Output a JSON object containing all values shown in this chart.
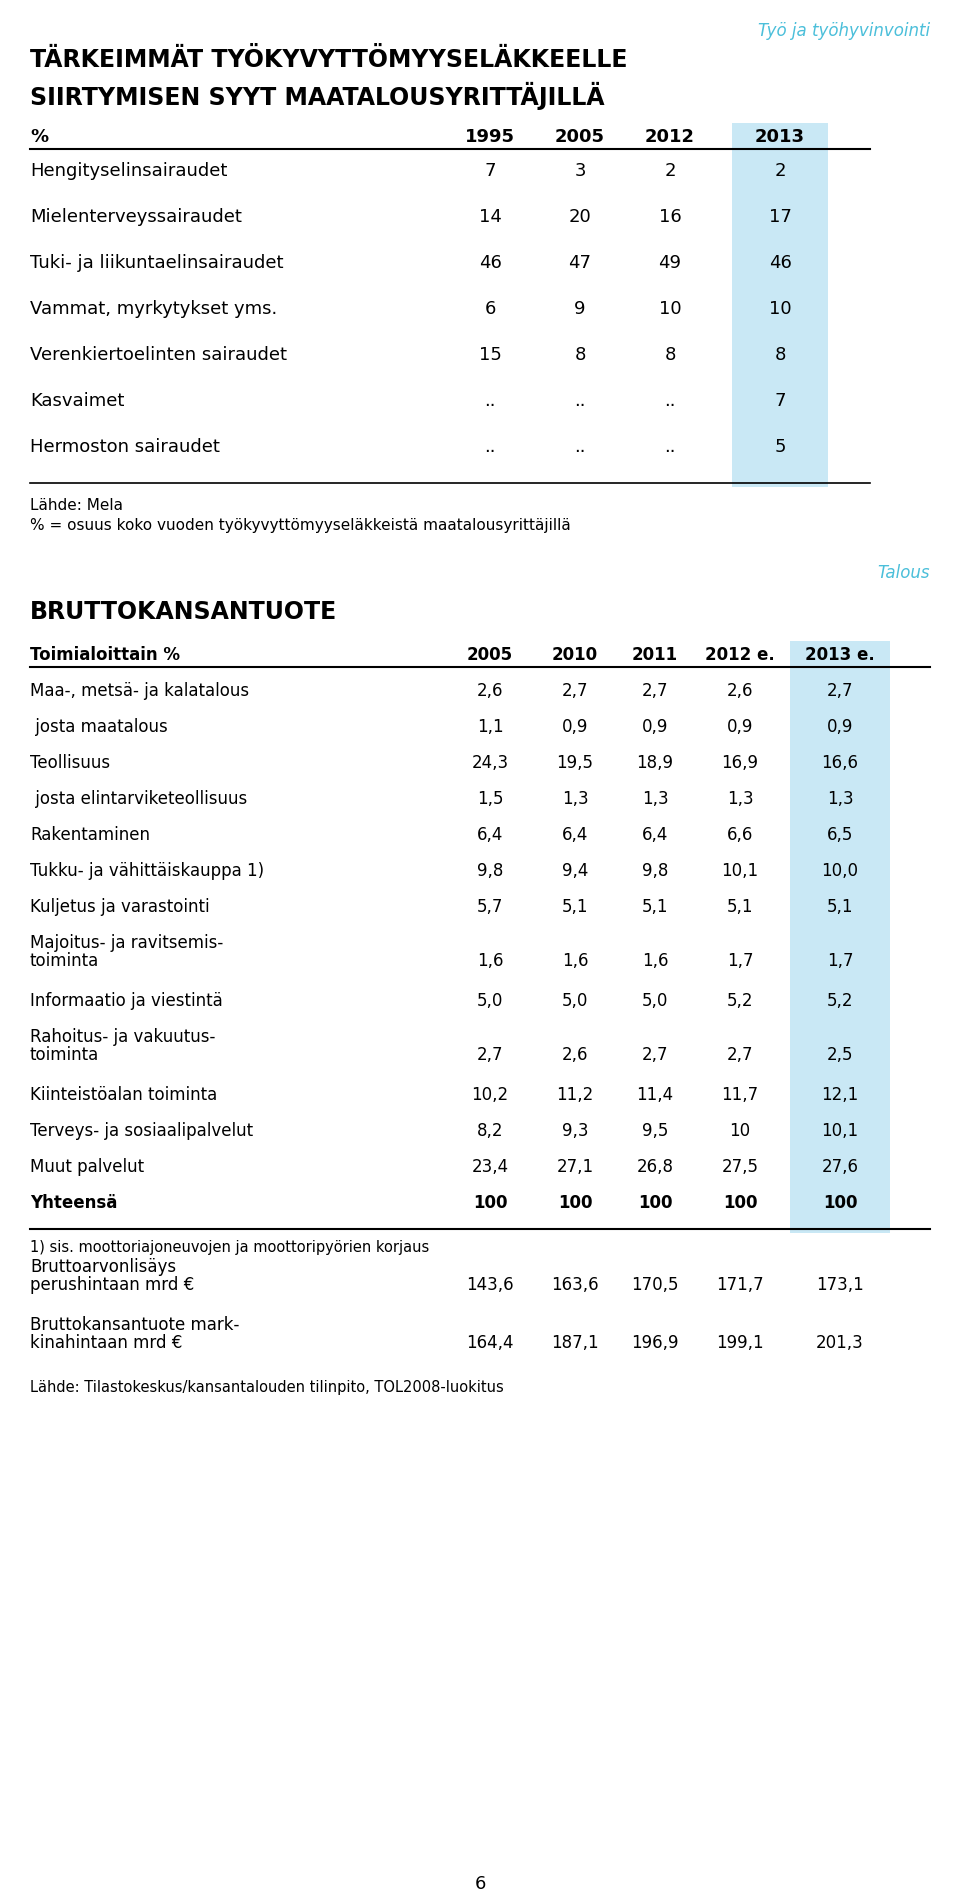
{
  "page_bg": "#ffffff",
  "header_tag": "Työ ja työhyvinvointi",
  "header_tag_color": "#4BBFDA",
  "title1": "TÄRKEIMMÄT TYÖKYVYTTÖMYYSELÄKKEELLE",
  "title2": "SIIRTYMISEN SYYT MAATALOUSYRITTÄJILLÄ",
  "title_color": "#000000",
  "title_fontsize": 17,
  "table1_header": [
    "%",
    "1995",
    "2005",
    "2012",
    "2013"
  ],
  "table1_highlight_color": "#C9E8F5",
  "table1_rows": [
    [
      "Hengityselinsairaudet",
      "7",
      "3",
      "2",
      "2"
    ],
    [
      "Mielenterveyssairaudet",
      "14",
      "20",
      "16",
      "17"
    ],
    [
      "Tuki- ja liikuntaelinsairaudet",
      "46",
      "47",
      "49",
      "46"
    ],
    [
      "Vammat, myrkytykset yms.",
      "6",
      "9",
      "10",
      "10"
    ],
    [
      "Verenkiertoelinten sairaudet",
      "15",
      "8",
      "8",
      "8"
    ],
    [
      "Kasvaimet",
      "..",
      "..",
      "..",
      "7"
    ],
    [
      "Hermoston sairaudet",
      "..",
      "..",
      "..",
      "5"
    ]
  ],
  "table1_source": "Lähde: Mela",
  "table1_note": "% = osuus koko vuoden työkyvyttömyyseläkkeistä maatalousyrittäjillä",
  "section2_tag": "Talous",
  "section2_tag_color": "#4BBFDA",
  "section2_title": "BRUTTOKANSANTUOTE",
  "section2_title_fontsize": 17,
  "table2_header": [
    "Toimialoittain %",
    "2005",
    "2010",
    "2011",
    "2012 e.",
    "2013 e."
  ],
  "table2_highlight_color": "#C9E8F5",
  "table2_rows": [
    [
      "Maa-, metsä- ja kalatalous",
      "2,6",
      "2,7",
      "2,7",
      "2,6",
      "2,7"
    ],
    [
      " josta maatalous",
      "1,1",
      "0,9",
      "0,9",
      "0,9",
      "0,9"
    ],
    [
      "Teollisuus",
      "24,3",
      "19,5",
      "18,9",
      "16,9",
      "16,6"
    ],
    [
      " josta elintarviketeollisuus",
      "1,5",
      "1,3",
      "1,3",
      "1,3",
      "1,3"
    ],
    [
      "Rakentaminen",
      "6,4",
      "6,4",
      "6,4",
      "6,6",
      "6,5"
    ],
    [
      "Tukku- ja vähittäiskauppa 1)",
      "9,8",
      "9,4",
      "9,8",
      "10,1",
      "10,0"
    ],
    [
      "Kuljetus ja varastointi",
      "5,7",
      "5,1",
      "5,1",
      "5,1",
      "5,1"
    ],
    [
      "Majoitus- ja ravitsemis-\ntoiminta",
      "1,6",
      "1,6",
      "1,6",
      "1,7",
      "1,7"
    ],
    [
      "Informaatio ja viestintä",
      "5,0",
      "5,0",
      "5,0",
      "5,2",
      "5,2"
    ],
    [
      "Rahoitus- ja vakuutus-\ntoiminta",
      "2,7",
      "2,6",
      "2,7",
      "2,7",
      "2,5"
    ],
    [
      "Kiinteistöalan toiminta",
      "10,2",
      "11,2",
      "11,4",
      "11,7",
      "12,1"
    ],
    [
      "Terveys- ja sosiaalipalvelut",
      "8,2",
      "9,3",
      "9,5",
      "10",
      "10,1"
    ],
    [
      "Muut palvelut",
      "23,4",
      "27,1",
      "26,8",
      "27,5",
      "27,6"
    ],
    [
      "Yhteensä",
      "100",
      "100",
      "100",
      "100",
      "100"
    ]
  ],
  "table2_bold_rows": [
    13
  ],
  "table2_footnote": "1) sis. moottoriajoneuvojen ja moottoripyörien korjaus",
  "table2_extra_rows": [
    [
      "Bruttoarvonlisäys\nperushintaan mrd €",
      "143,6",
      "163,6",
      "170,5",
      "171,7",
      "173,1"
    ],
    [
      "Bruttokansantuote mark-\nkinahintaan mrd €",
      "164,4",
      "187,1",
      "196,9",
      "199,1",
      "201,3"
    ]
  ],
  "table2_source": "Lähde: Tilastokeskus/kansantalouden tilinpito, TOL2008-luokitus",
  "page_number": "6"
}
